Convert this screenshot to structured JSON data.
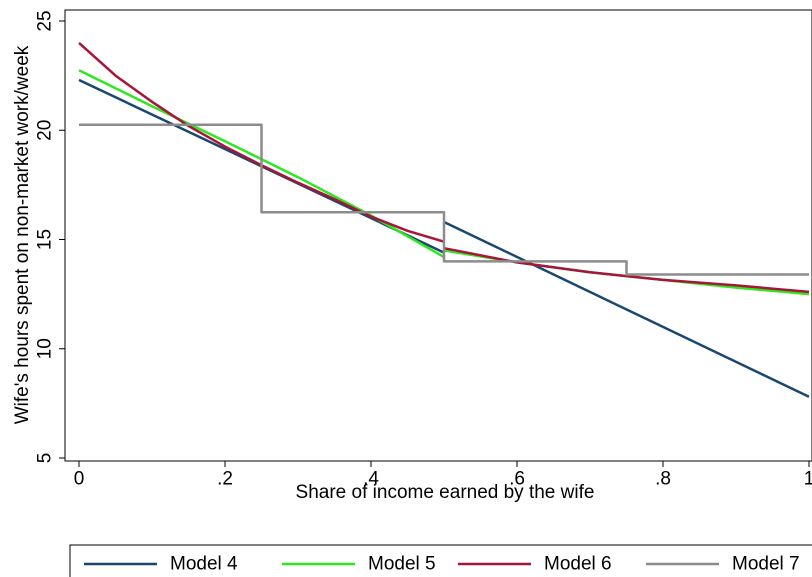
{
  "chart_data": {
    "type": "line",
    "title": "",
    "xlabel": "Share of income earned by the wife",
    "ylabel": "Wife's hours spent on non-market work/week",
    "xlim": [
      0,
      1
    ],
    "ylim": [
      5,
      25
    ],
    "x_ticks": [
      0,
      0.2,
      0.4,
      0.6,
      0.8,
      1
    ],
    "x_tick_labels": [
      "0",
      ".2",
      ".4",
      ".6",
      ".8",
      "1"
    ],
    "y_ticks": [
      5,
      10,
      15,
      20,
      25
    ],
    "y_tick_labels": [
      "5",
      "10",
      "15",
      "20",
      "25"
    ],
    "grid": false,
    "legend_position": "bottom",
    "series": [
      {
        "name": "Model 4",
        "color": "#1a476f",
        "segments": [
          [
            [
              0,
              22.3
            ],
            [
              0.5,
              14.4
            ]
          ],
          [
            [
              0.5,
              15.8
            ],
            [
              1,
              7.8
            ]
          ]
        ]
      },
      {
        "name": "Model 5",
        "color": "#2ee81f",
        "segments": [
          [
            [
              0,
              22.75
            ],
            [
              0.1,
              21.1
            ],
            [
              0.2,
              19.5
            ],
            [
              0.3,
              17.85
            ],
            [
              0.4,
              16.1
            ],
            [
              0.5,
              14.2
            ]
          ],
          [
            [
              0.5,
              14.5
            ],
            [
              0.6,
              13.95
            ],
            [
              0.7,
              13.5
            ],
            [
              0.8,
              13.15
            ],
            [
              0.9,
              12.8
            ],
            [
              1,
              12.5
            ]
          ]
        ]
      },
      {
        "name": "Model 6",
        "color": "#a8153a",
        "segments": [
          [
            [
              0,
              24.0
            ],
            [
              0.05,
              22.5
            ],
            [
              0.1,
              21.3
            ],
            [
              0.15,
              20.2
            ],
            [
              0.2,
              19.25
            ],
            [
              0.25,
              18.4
            ],
            [
              0.3,
              17.6
            ],
            [
              0.35,
              16.85
            ],
            [
              0.4,
              16.05
            ],
            [
              0.45,
              15.4
            ],
            [
              0.5,
              14.9
            ]
          ],
          [
            [
              0.5,
              14.6
            ],
            [
              0.6,
              13.95
            ],
            [
              0.7,
              13.5
            ],
            [
              0.8,
              13.15
            ],
            [
              0.9,
              12.9
            ],
            [
              1,
              12.6
            ]
          ]
        ]
      },
      {
        "name": "Model 7",
        "color": "#8c8c8c",
        "step": true,
        "segments": [
          [
            [
              0,
              20.25
            ],
            [
              0.25,
              20.25
            ],
            [
              0.25,
              16.25
            ],
            [
              0.5,
              16.25
            ],
            [
              0.5,
              14.0
            ],
            [
              0.75,
              14.0
            ],
            [
              0.75,
              13.4
            ],
            [
              1,
              13.4
            ]
          ]
        ]
      }
    ]
  }
}
